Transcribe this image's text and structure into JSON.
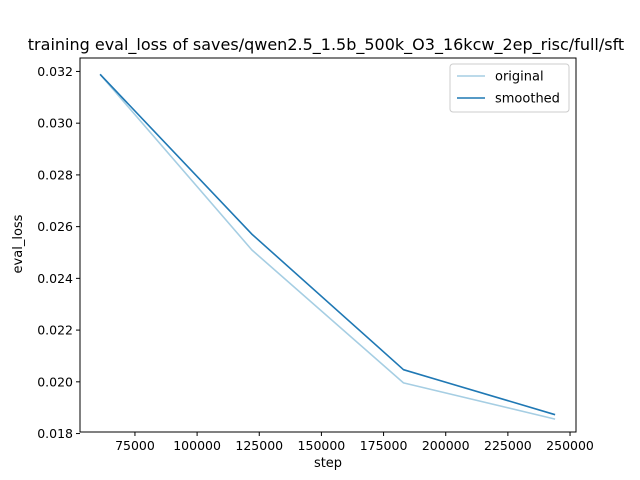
{
  "chart_data": {
    "type": "line",
    "title": "training eval_loss of saves/qwen2.5_1.5b_500k_O3_16kcw_2ep_risc/full/sft",
    "xlabel": "step",
    "ylabel": "eval_loss",
    "xlim": [
      52900,
      252400
    ],
    "ylim": [
      0.01806,
      0.03252
    ],
    "xticks": [
      75000,
      100000,
      125000,
      150000,
      175000,
      200000,
      225000,
      250000
    ],
    "xtick_labels": [
      "75000",
      "100000",
      "125000",
      "150000",
      "175000",
      "200000",
      "225000",
      "250000"
    ],
    "yticks": [
      0.018,
      0.02,
      0.022,
      0.024,
      0.026,
      0.028,
      0.03,
      0.032
    ],
    "ytick_labels": [
      "0.018",
      "0.020",
      "0.022",
      "0.024",
      "0.026",
      "0.028",
      "0.030",
      "0.032"
    ],
    "legend_position": "upper right",
    "grid": false,
    "series": [
      {
        "name": "original",
        "color": "#a6cee3",
        "x": [
          61000,
          122000,
          183000,
          244000
        ],
        "y": [
          0.03189,
          0.0251,
          0.01996,
          0.01856
        ]
      },
      {
        "name": "smoothed",
        "color": "#1f78b4",
        "x": [
          61000,
          122000,
          183000,
          244000
        ],
        "y": [
          0.03189,
          0.02571,
          0.02047,
          0.01873
        ]
      }
    ]
  }
}
